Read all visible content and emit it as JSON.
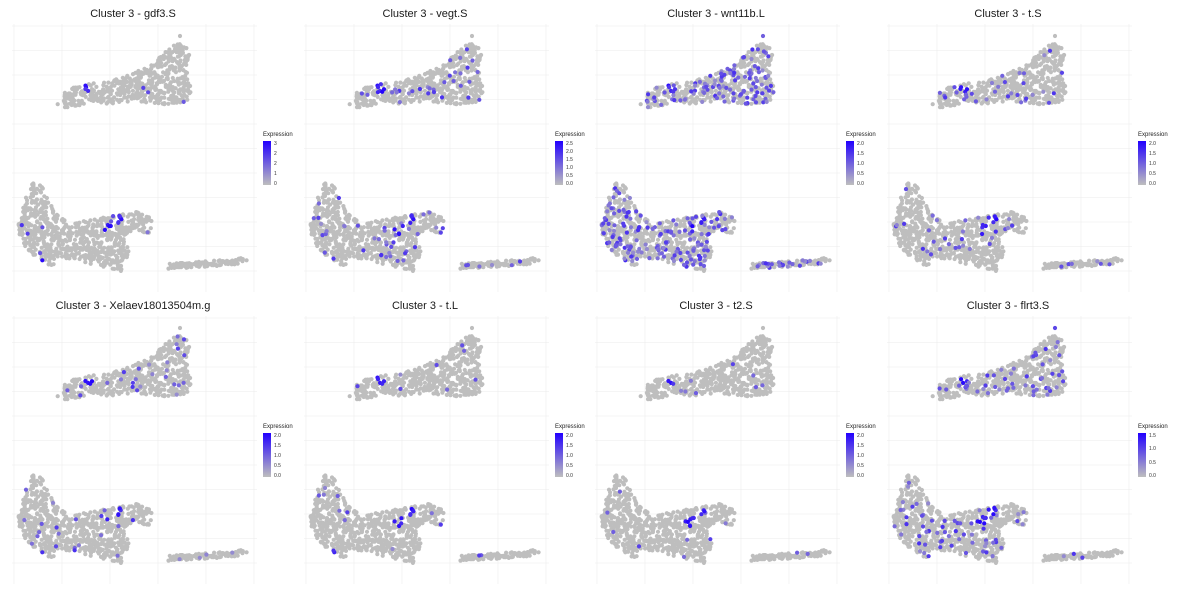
{
  "colors": {
    "low": "#bebebe",
    "high": "#2200ff",
    "grid": "#ececec"
  },
  "legend_title": "Expression",
  "panels": [
    {
      "title": "Cluster 3 - gdf3.S",
      "ticks": [
        "0",
        "1",
        "2",
        "2",
        "3"
      ],
      "vmax": 3,
      "expr_density": 0.01
    },
    {
      "title": "Cluster 3 - vegt.S",
      "ticks": [
        "0.0",
        "0.5",
        "1.0",
        "1.5",
        "2.0",
        "2.5"
      ],
      "vmax": 2.5,
      "expr_density": 0.05
    },
    {
      "title": "Cluster 3 - wnt11b.L",
      "ticks": [
        "0.0",
        "0.5",
        "1.0",
        "1.5",
        "2.0"
      ],
      "vmax": 2.0,
      "expr_density": 0.22
    },
    {
      "title": "Cluster 3 - t.S",
      "ticks": [
        "0.0",
        "0.5",
        "1.0",
        "1.5",
        "2.0"
      ],
      "vmax": 2.0,
      "expr_density": 0.05
    },
    {
      "title": "Cluster 3 - Xelaev18013504m.g",
      "ticks": [
        "0.0",
        "0.5",
        "1.0",
        "1.5",
        "2.0"
      ],
      "vmax": 2.0,
      "expr_density": 0.04
    },
    {
      "title": "Cluster 3 - t.L",
      "ticks": [
        "0.0",
        "0.5",
        "1.0",
        "1.5",
        "2.0"
      ],
      "vmax": 2.0,
      "expr_density": 0.015
    },
    {
      "title": "Cluster 3 - t2.S",
      "ticks": [
        "0.0",
        "0.5",
        "1.0",
        "1.5",
        "2.0"
      ],
      "vmax": 2.0,
      "expr_density": 0.015
    },
    {
      "title": "Cluster 3 - flrt3.S",
      "ticks": [
        "0.0",
        "0.5",
        "1.0",
        "1.5"
      ],
      "vmax": 1.5,
      "expr_density": 0.08
    }
  ],
  "chart_data": {
    "type": "scatter",
    "subtype": "UMAP feature plots, 4 x 2 grid",
    "color_scale": [
      "#bebebe",
      "#2200ff"
    ],
    "grid": true
  }
}
